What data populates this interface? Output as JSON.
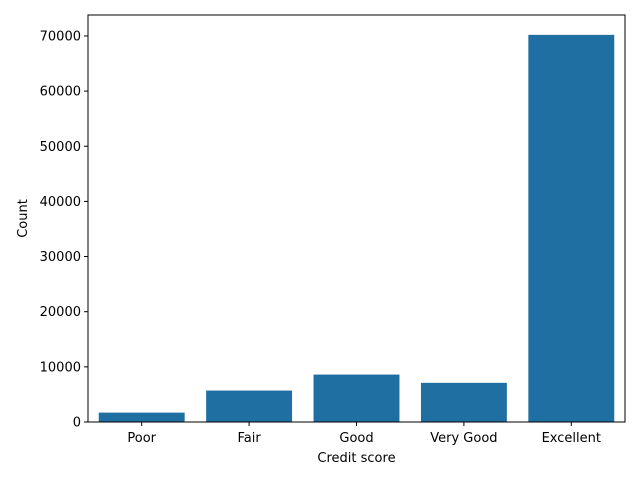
{
  "chart_data": {
    "type": "bar",
    "title": "",
    "xlabel": "Credit score",
    "ylabel": "Count",
    "categories": [
      "Poor",
      "Fair",
      "Good",
      "Very Good",
      "Excellent"
    ],
    "values": [
      1700,
      5700,
      8600,
      7100,
      70200
    ],
    "ylim": [
      0,
      73800
    ],
    "yticks": [
      0,
      10000,
      20000,
      30000,
      40000,
      50000,
      60000,
      70000
    ],
    "grid": false,
    "legend": "none",
    "bar_color": "#1f6fa3"
  }
}
